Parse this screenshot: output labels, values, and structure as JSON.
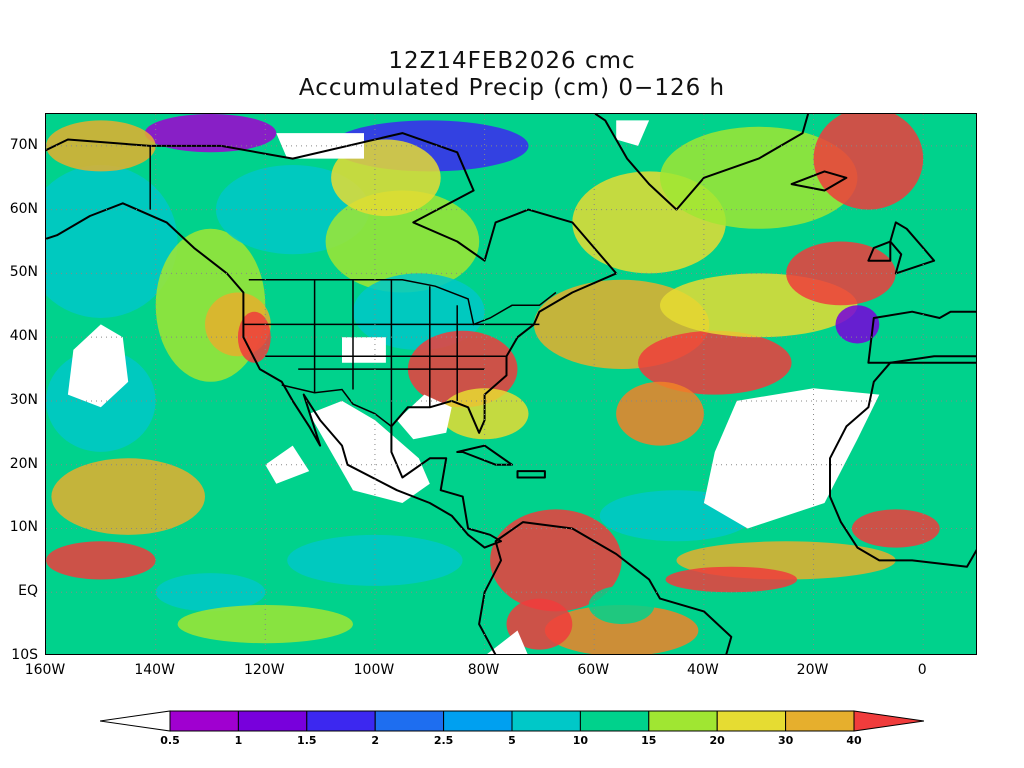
{
  "title": {
    "line1": "12Z14FEB2026 cmc",
    "line2": "Accumulated Precip (cm) 0−126 h"
  },
  "map": {
    "lon_range": [
      -160,
      10
    ],
    "lat_range": [
      -10,
      75
    ],
    "lat_ticks": [
      {
        "value": 70,
        "label": "70N"
      },
      {
        "value": 60,
        "label": "60N"
      },
      {
        "value": 50,
        "label": "50N"
      },
      {
        "value": 40,
        "label": "40N"
      },
      {
        "value": 30,
        "label": "30N"
      },
      {
        "value": 20,
        "label": "20N"
      },
      {
        "value": 10,
        "label": "10N"
      },
      {
        "value": 0,
        "label": "EQ"
      },
      {
        "value": -10,
        "label": "10S"
      }
    ],
    "lon_ticks": [
      {
        "value": -160,
        "label": "160W"
      },
      {
        "value": -140,
        "label": "140W"
      },
      {
        "value": -120,
        "label": "120W"
      },
      {
        "value": -100,
        "label": "100W"
      },
      {
        "value": -80,
        "label": "80W"
      },
      {
        "value": -60,
        "label": "60W"
      },
      {
        "value": -40,
        "label": "40W"
      },
      {
        "value": -20,
        "label": "20W"
      },
      {
        "value": 0,
        "label": "0"
      }
    ],
    "gridlines": "dotted"
  },
  "legend": {
    "placement": "bottom",
    "levels": [
      "0.5",
      "1",
      "1.5",
      "2",
      "2.5",
      "5",
      "10",
      "15",
      "20",
      "30",
      "40"
    ],
    "colors": [
      "#ffffff",
      "#a000d0",
      "#7800dc",
      "#3c28f0",
      "#1e6ef0",
      "#00a0f0",
      "#00c8c8",
      "#00d28c",
      "#a0e632",
      "#e6dc32",
      "#e6af2d",
      "#f08228",
      "#f03c3c"
    ]
  }
}
